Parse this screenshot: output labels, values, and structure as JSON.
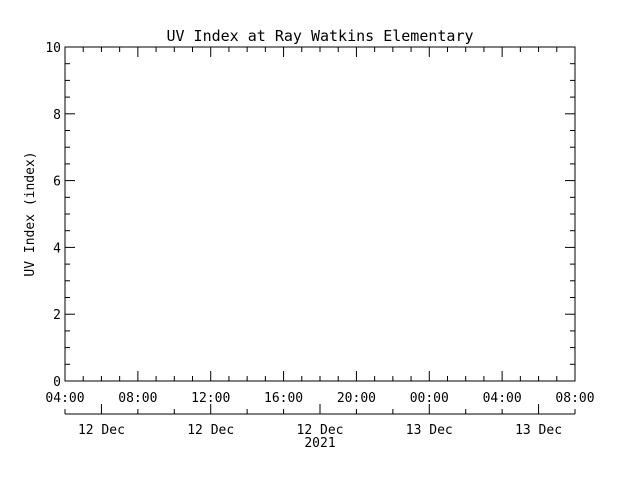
{
  "chart_data": {
    "type": "line",
    "title": "UV Index at Ray Watkins Elementary",
    "ylabel": "UV Index (index)",
    "xlabel": "",
    "ylim": [
      0,
      10
    ],
    "y_ticks": [
      "0",
      "2",
      "4",
      "6",
      "8",
      "10"
    ],
    "x_range": [
      "2021-12-12 04:00",
      "2021-12-13 08:00"
    ],
    "x_ticks": [
      "04:00",
      "08:00",
      "12:00",
      "16:00",
      "20:00",
      "00:00",
      "04:00",
      "08:00"
    ],
    "date_labels": [
      "12 Dec",
      "12 Dec",
      "12 Dec",
      "13 Dec",
      "13 Dec"
    ],
    "year_label": "2021",
    "grid": false,
    "series": [
      {
        "values": []
      }
    ],
    "colors": {
      "axis": "#000000",
      "background": "#ffffff"
    }
  }
}
